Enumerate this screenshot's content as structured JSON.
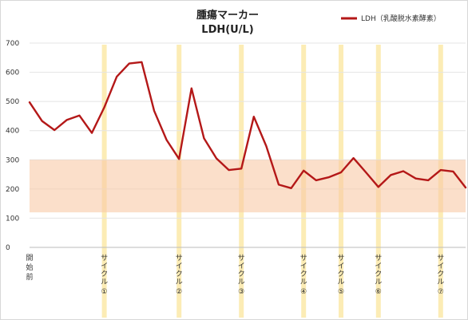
{
  "chart_data": {
    "type": "line",
    "title": "腫瘍マーカー",
    "subtitle": "LDH(U/L)",
    "xlabel": "",
    "ylabel": "",
    "ylim": [
      0,
      700
    ],
    "yticks": [
      0,
      100,
      200,
      300,
      400,
      500,
      600,
      700
    ],
    "grid": true,
    "legend_position": "top-right",
    "reference_range": {
      "low": 120,
      "high": 300,
      "color": "#f8c9a6"
    },
    "series": [
      {
        "name": "LDH（乳酸脱水素酵素）",
        "color": "#b41818",
        "values": [
          497,
          433,
          402,
          437,
          452,
          392,
          480,
          585,
          630,
          635,
          468,
          368,
          303,
          545,
          374,
          305,
          265,
          270,
          448,
          347,
          215,
          203,
          263,
          230,
          240,
          257,
          306,
          257,
          207,
          248,
          261,
          236,
          230,
          265,
          260,
          205
        ]
      }
    ],
    "start_label": "開始前",
    "cycle_markers": [
      {
        "label": "サイクル",
        "number": "①",
        "index": 6
      },
      {
        "label": "サイクル",
        "number": "②",
        "index": 12
      },
      {
        "label": "サイクル",
        "number": "③",
        "index": 17
      },
      {
        "label": "サイクル",
        "number": "④",
        "index": 22
      },
      {
        "label": "サイクル",
        "number": "⑤",
        "index": 25
      },
      {
        "label": "サイクル",
        "number": "⑥",
        "index": 28
      },
      {
        "label": "サイクル",
        "number": "⑦",
        "index": 33
      }
    ],
    "cycle_band_color": "#fbe9a8"
  }
}
